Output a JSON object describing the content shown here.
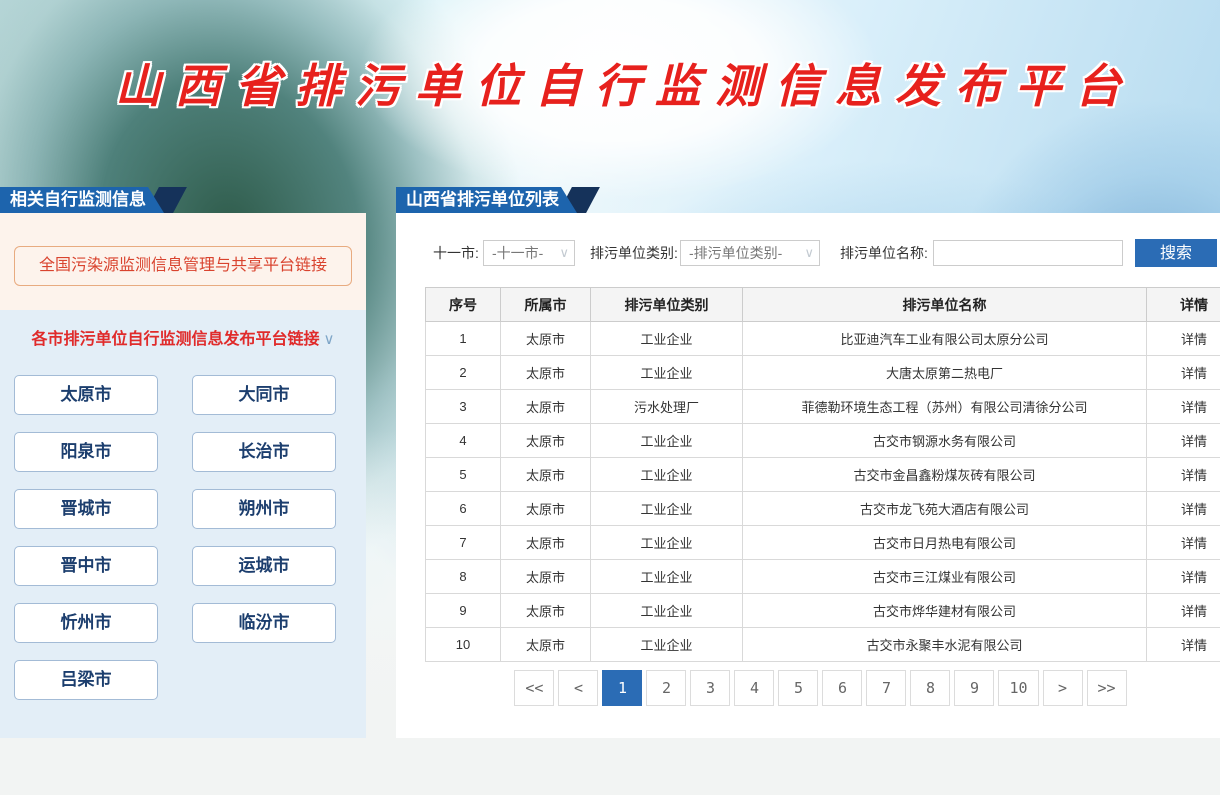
{
  "banner": {
    "title": "山西省排污单位自行监测信息发布平台"
  },
  "icons": {
    "chevron_down": "∨"
  },
  "colors": {
    "accent_blue": "#1d64ad",
    "button_blue": "#2b6cb5",
    "navy": "#15325a",
    "title_red": "#e7211d",
    "link_red": "#d9432e",
    "cream_bg": "#fdf3ec",
    "panel_blue_bg": "#e3eef7",
    "city_text": "#1c3e6e"
  },
  "sidebar": {
    "header": "相关自行监测信息",
    "national_link": "全国污染源监测信息管理与共享平台链接",
    "cities_header": "各市排污单位自行监测信息发布平台链接",
    "cities": [
      "太原市",
      "大同市",
      "阳泉市",
      "长治市",
      "晋城市",
      "朔州市",
      "晋中市",
      "运城市",
      "忻州市",
      "临汾市",
      "吕梁市"
    ]
  },
  "main": {
    "header": "山西省排污单位列表",
    "filters": {
      "city_label": "十一市:",
      "city_value": "-十一市-",
      "type_label": "排污单位类别:",
      "type_value": "-排污单位类别-",
      "name_label": "排污单位名称:",
      "name_value": "",
      "search_label": "搜索"
    },
    "table": {
      "columns": [
        "序号",
        "所属市",
        "排污单位类别",
        "排污单位名称",
        "详情"
      ],
      "rows": [
        [
          "1",
          "太原市",
          "工业企业",
          "比亚迪汽车工业有限公司太原分公司",
          "详情"
        ],
        [
          "2",
          "太原市",
          "工业企业",
          "大唐太原第二热电厂",
          "详情"
        ],
        [
          "3",
          "太原市",
          "污水处理厂",
          "菲德勒环境生态工程（苏州）有限公司清徐分公司",
          "详情"
        ],
        [
          "4",
          "太原市",
          "工业企业",
          "古交市钢源水务有限公司",
          "详情"
        ],
        [
          "5",
          "太原市",
          "工业企业",
          "古交市金昌鑫粉煤灰砖有限公司",
          "详情"
        ],
        [
          "6",
          "太原市",
          "工业企业",
          "古交市龙飞苑大酒店有限公司",
          "详情"
        ],
        [
          "7",
          "太原市",
          "工业企业",
          "古交市日月热电有限公司",
          "详情"
        ],
        [
          "8",
          "太原市",
          "工业企业",
          "古交市三江煤业有限公司",
          "详情"
        ],
        [
          "9",
          "太原市",
          "工业企业",
          "古交市烨华建材有限公司",
          "详情"
        ],
        [
          "10",
          "太原市",
          "工业企业",
          "古交市永聚丰水泥有限公司",
          "详情"
        ]
      ]
    },
    "pagination": {
      "first": "<<",
      "prev": "<",
      "pages": [
        "1",
        "2",
        "3",
        "4",
        "5",
        "6",
        "7",
        "8",
        "9",
        "10"
      ],
      "active": "1",
      "next": ">",
      "last": ">>"
    }
  }
}
